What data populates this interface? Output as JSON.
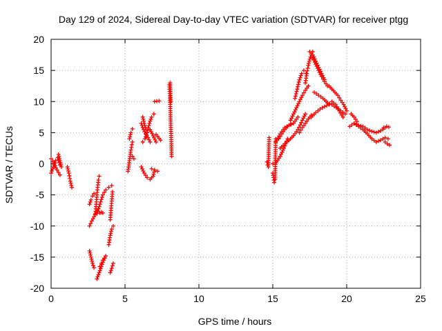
{
  "chart_data": {
    "type": "scatter",
    "title": "Day 129 of 2024, Sidereal Day-to-day VTEC variation (SDTVAR) for receiver ptgg",
    "xlabel": "GPS time / hours",
    "ylabel": "SDTVAR / TECUs",
    "xlim": [
      0,
      25
    ],
    "ylim": [
      -20,
      20
    ],
    "xticks": [
      0,
      5,
      10,
      15,
      20,
      25
    ],
    "yticks": [
      -20,
      -15,
      -10,
      -5,
      0,
      5,
      10,
      15,
      20
    ],
    "grid": true,
    "marker": "+",
    "color": "#ff0000",
    "tracks": [
      {
        "x": [
          0.0,
          0.15,
          0.3,
          0.45,
          0.6
        ],
        "y": [
          -1.5,
          -0.5,
          0.5,
          1.0,
          -0.2
        ]
      },
      {
        "x": [
          0.0,
          0.2,
          0.4,
          0.6
        ],
        "y": [
          0.8,
          0.0,
          -1.0,
          -1.8
        ]
      },
      {
        "x": [
          0.5,
          0.6,
          0.7
        ],
        "y": [
          1.5,
          0.5,
          -0.5
        ]
      },
      {
        "x": [
          1.1,
          1.2,
          1.3,
          1.4
        ],
        "y": [
          -0.5,
          -1.5,
          -2.8,
          -3.8
        ]
      },
      {
        "x": [
          2.6,
          2.75,
          2.9,
          3.05,
          3.2
        ],
        "y": [
          -10.0,
          -9.2,
          -8.5,
          -7.8,
          -7.2
        ]
      },
      {
        "x": [
          2.6,
          2.7,
          2.8,
          2.9
        ],
        "y": [
          -6.5,
          -5.8,
          -5.2,
          -4.8
        ]
      },
      {
        "x": [
          2.6,
          2.7,
          2.8,
          2.9
        ],
        "y": [
          -14.0,
          -15.0,
          -16.0,
          -16.7
        ]
      },
      {
        "x": [
          3.0,
          3.05,
          3.1,
          3.15,
          3.2,
          3.25
        ],
        "y": [
          -8.0,
          -6.5,
          -5.0,
          -3.8,
          -2.6,
          -2.0
        ]
      },
      {
        "x": [
          3.1,
          3.3,
          3.5,
          3.7,
          3.9,
          4.1
        ],
        "y": [
          -8.0,
          -6.5,
          -5.0,
          -4.2,
          -3.8,
          -3.5
        ]
      },
      {
        "x": [
          3.1,
          3.25,
          3.4,
          3.55,
          3.7
        ],
        "y": [
          -18.5,
          -17.5,
          -16.5,
          -15.5,
          -14.8
        ]
      },
      {
        "x": [
          3.3,
          3.4,
          3.5
        ],
        "y": [
          -7.9,
          -7.8,
          -7.9
        ]
      },
      {
        "x": [
          3.3,
          3.4,
          3.5,
          3.6
        ],
        "y": [
          -16.5,
          -16.0,
          -15.5,
          -15.2
        ]
      },
      {
        "x": [
          3.9,
          4.0,
          4.1,
          4.2
        ],
        "y": [
          -13.0,
          -11.5,
          -10.5,
          -10.0
        ]
      },
      {
        "x": [
          4.0,
          4.1,
          4.2
        ],
        "y": [
          -17.5,
          -16.8,
          -16.0
        ]
      },
      {
        "x": [
          4.0,
          4.05,
          4.1,
          4.15
        ],
        "y": [
          -9.0,
          -7.5,
          -6.0,
          -4.5
        ]
      },
      {
        "x": [
          5.2,
          5.3,
          5.4,
          5.5
        ],
        "y": [
          -1.2,
          0.5,
          2.2,
          3.5
        ]
      },
      {
        "x": [
          5.3,
          5.4,
          5.5
        ],
        "y": [
          4.0,
          5.0,
          5.6
        ]
      },
      {
        "x": [
          5.5,
          5.6
        ],
        "y": [
          1.2,
          0.8
        ]
      },
      {
        "x": [
          6.1,
          6.25,
          6.4,
          6.55,
          6.7
        ],
        "y": [
          6.5,
          5.5,
          4.8,
          4.2,
          3.5
        ]
      },
      {
        "x": [
          6.2,
          6.35,
          6.5,
          6.65,
          6.8,
          6.95
        ],
        "y": [
          3.5,
          4.0,
          5.0,
          6.5,
          7.5,
          8.0
        ]
      },
      {
        "x": [
          6.2,
          6.3,
          6.4
        ],
        "y": [
          7.5,
          6.5,
          5.5
        ]
      },
      {
        "x": [
          6.1,
          6.3,
          6.5,
          6.7,
          6.9,
          7.0
        ],
        "y": [
          -0.5,
          -1.5,
          -2.2,
          -2.5,
          -2.0,
          -1.0
        ]
      },
      {
        "x": [
          6.8,
          7.0,
          7.2
        ],
        "y": [
          -0.8,
          -1.0,
          -1.2
        ]
      },
      {
        "x": [
          6.7,
          6.9,
          7.1
        ],
        "y": [
          5.5,
          4.5,
          3.5
        ]
      },
      {
        "x": [
          7.0,
          7.3
        ],
        "y": [
          10.0,
          10.1
        ]
      },
      {
        "x": [
          7.1,
          7.4
        ],
        "y": [
          4.7,
          3.8
        ]
      },
      {
        "x": [
          8.0,
          8.05,
          8.1,
          8.15
        ],
        "y": [
          12.7,
          10.2,
          6.2,
          1.2
        ]
      },
      {
        "x": [
          8.05,
          8.1
        ],
        "y": [
          13.0,
          10.0
        ]
      },
      {
        "x": [
          14.6,
          14.65,
          14.7,
          14.75
        ],
        "y": [
          0.3,
          -0.2,
          -0.5,
          4.2
        ]
      },
      {
        "x": [
          15.0,
          15.05,
          15.1,
          15.15,
          15.2
        ],
        "y": [
          -1.5,
          -2.2,
          -3.0,
          -2.5,
          4.0
        ]
      },
      {
        "x": [
          15.0,
          15.25,
          15.5,
          15.75,
          16.0
        ],
        "y": [
          0.0,
          0.3,
          1.2,
          2.5,
          4.0
        ]
      },
      {
        "x": [
          15.2,
          15.5,
          15.8,
          16.1,
          16.4,
          16.7
        ],
        "y": [
          3.5,
          4.8,
          5.8,
          6.2,
          6.5,
          7.5
        ]
      },
      {
        "x": [
          15.5,
          15.8,
          16.1,
          16.4,
          16.7,
          17.0,
          17.2
        ],
        "y": [
          2.5,
          3.2,
          3.8,
          4.5,
          5.5,
          7.0,
          8.0
        ]
      },
      {
        "x": [
          15.4,
          15.6,
          15.8,
          16.0,
          16.2,
          16.4
        ],
        "y": [
          4.0,
          4.8,
          5.5,
          6.0,
          6.3,
          6.5
        ]
      },
      {
        "x": [
          16.2,
          16.4,
          16.6,
          16.8,
          17.0,
          17.2,
          17.4
        ],
        "y": [
          7.0,
          8.0,
          9.0,
          10.0,
          11.0,
          11.8,
          12.5
        ]
      },
      {
        "x": [
          16.5,
          16.65,
          16.8,
          16.95,
          17.1,
          17.25
        ],
        "y": [
          10.5,
          12.0,
          13.5,
          14.5,
          15.0,
          14.5
        ]
      },
      {
        "x": [
          16.8,
          17.0,
          17.2,
          17.4,
          17.6
        ],
        "y": [
          5.0,
          5.8,
          6.5,
          7.2,
          7.8
        ]
      },
      {
        "x": [
          17.2,
          17.3,
          17.4,
          17.5,
          17.6,
          17.7
        ],
        "y": [
          13.0,
          14.5,
          15.8,
          16.8,
          17.5,
          18.0
        ]
      },
      {
        "x": [
          17.5,
          17.7,
          17.9,
          18.1,
          18.3,
          18.5
        ],
        "y": [
          18.0,
          17.5,
          16.5,
          15.5,
          14.5,
          13.5
        ]
      },
      {
        "x": [
          17.7,
          17.9,
          18.1,
          18.3,
          18.5,
          18.7
        ],
        "y": [
          17.0,
          16.0,
          15.0,
          14.0,
          13.2,
          12.5
        ]
      },
      {
        "x": [
          17.6,
          17.9,
          18.2,
          18.5,
          18.8
        ],
        "y": [
          7.5,
          8.2,
          8.8,
          9.2,
          9.5
        ]
      },
      {
        "x": [
          17.8,
          18.1,
          18.4,
          18.7,
          19.0,
          19.3,
          19.6,
          19.9
        ],
        "y": [
          11.5,
          11.0,
          10.5,
          9.8,
          9.5,
          9.0,
          8.5,
          8.0
        ]
      },
      {
        "x": [
          18.8,
          19.0,
          19.2,
          19.4,
          19.6,
          19.8,
          20.0
        ],
        "y": [
          12.5,
          12.0,
          11.5,
          11.0,
          10.2,
          9.5,
          8.5
        ]
      },
      {
        "x": [
          19.0,
          19.25,
          19.5,
          19.75
        ],
        "y": [
          10.0,
          9.5,
          8.5,
          7.5
        ]
      },
      {
        "x": [
          20.3,
          20.5,
          20.7
        ],
        "y": [
          8.0,
          7.5,
          6.8
        ]
      },
      {
        "x": [
          20.2,
          20.5,
          20.8,
          21.1,
          21.4,
          21.7,
          22.0,
          22.3,
          22.6
        ],
        "y": [
          6.0,
          6.5,
          6.2,
          6.0,
          5.5,
          5.2,
          5.0,
          5.3,
          5.8
        ]
      },
      {
        "x": [
          20.5,
          20.8,
          21.1,
          21.4,
          21.7,
          22.0,
          22.3,
          22.6,
          22.8
        ],
        "y": [
          6.5,
          6.0,
          5.5,
          4.8,
          4.0,
          3.5,
          3.8,
          4.2,
          4.0
        ]
      },
      {
        "x": [
          22.5,
          22.7,
          22.85
        ],
        "y": [
          5.8,
          6.0,
          5.9
        ]
      },
      {
        "x": [
          22.6,
          22.75,
          22.9
        ],
        "y": [
          3.5,
          3.2,
          3.0
        ]
      }
    ]
  }
}
